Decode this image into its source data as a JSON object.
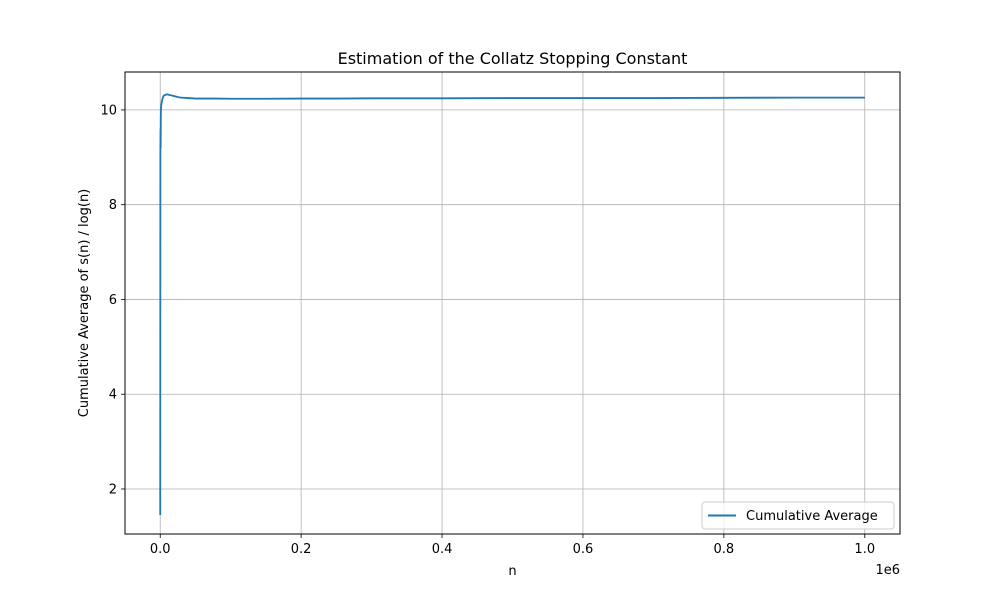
{
  "chart_data": {
    "type": "line",
    "title": "Estimation of the Collatz Stopping Constant",
    "xlabel": "n",
    "ylabel": "Cumulative Average of s(n) / log(n)",
    "x_offset_label": "1e6",
    "xlim": [
      -0.05,
      1.05
    ],
    "ylim": [
      1.05,
      10.8
    ],
    "x_ticks": [
      0.0,
      0.2,
      0.4,
      0.6,
      0.8,
      1.0
    ],
    "x_tick_labels": [
      "0.0",
      "0.2",
      "0.4",
      "0.6",
      "0.8",
      "1.0"
    ],
    "y_ticks": [
      2,
      4,
      6,
      8,
      10
    ],
    "y_tick_labels": [
      "2",
      "4",
      "6",
      "8",
      "10"
    ],
    "grid": true,
    "legend_position": "lower-right",
    "series": [
      {
        "name": "Cumulative Average",
        "color": "#1f77b4",
        "x": [
          0.0,
          0.0002,
          0.0004,
          0.0006,
          0.0008,
          0.001,
          0.0015,
          0.002,
          0.003,
          0.004,
          0.005,
          0.006,
          0.008,
          0.01,
          0.012,
          0.015,
          0.02,
          0.025,
          0.03,
          0.04,
          0.05,
          0.06,
          0.08,
          0.1,
          0.12,
          0.15,
          0.2,
          0.25,
          0.3,
          0.4,
          0.5,
          0.6,
          0.7,
          0.8,
          0.9,
          1.0
        ],
        "values": [
          1.45,
          9.0,
          9.6,
          9.2,
          9.8,
          10.0,
          10.1,
          10.15,
          10.22,
          10.27,
          10.3,
          10.31,
          10.32,
          10.33,
          10.32,
          10.31,
          10.29,
          10.27,
          10.26,
          10.25,
          10.24,
          10.24,
          10.24,
          10.235,
          10.235,
          10.235,
          10.24,
          10.24,
          10.245,
          10.245,
          10.25,
          10.25,
          10.25,
          10.255,
          10.26,
          10.26
        ]
      }
    ]
  }
}
